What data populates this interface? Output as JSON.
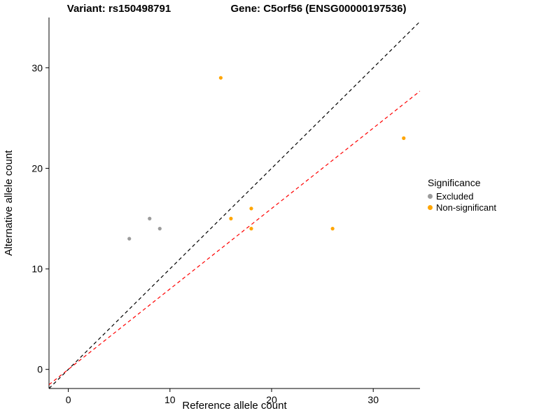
{
  "chart_data": {
    "type": "scatter",
    "variant_title": "Variant: rs150498791",
    "gene_title": "Gene: C5orf56 (ENSG00000197536)",
    "xlabel": "Reference allele count",
    "ylabel": "Alternative allele count",
    "xlim": [
      -1.9,
      34.6
    ],
    "ylim": [
      -1.9,
      35
    ],
    "x_ticks": [
      0,
      10,
      20,
      30
    ],
    "y_ticks": [
      0,
      10,
      20,
      30
    ],
    "grid": false,
    "series": [
      {
        "name": "Excluded",
        "color": "#9b9b9b",
        "points": [
          [
            6,
            13
          ],
          [
            8,
            15
          ],
          [
            9,
            14
          ]
        ]
      },
      {
        "name": "Non-significant",
        "color": "#FFA500",
        "points": [
          [
            15,
            29
          ],
          [
            16,
            15
          ],
          [
            18,
            16
          ],
          [
            18,
            14
          ],
          [
            26,
            14
          ],
          [
            33,
            23
          ]
        ]
      }
    ],
    "lines": [
      {
        "name": "identity",
        "slope": 1,
        "intercept": 0,
        "color": "#000000",
        "style": "dashed"
      },
      {
        "name": "fit",
        "slope": 0.8,
        "intercept": 0,
        "color": "#FF0000",
        "style": "dashed"
      }
    ],
    "legend": {
      "title": "Significance",
      "position": "right",
      "items": [
        {
          "label": "Excluded",
          "color": "#9b9b9b"
        },
        {
          "label": "Non-significant",
          "color": "#FFA500"
        }
      ]
    }
  }
}
